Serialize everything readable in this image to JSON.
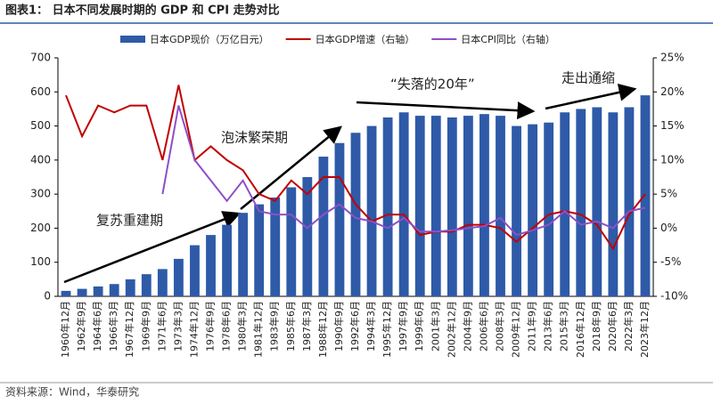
{
  "header": {
    "title": "图表1：  日本不同发展时期的 GDP 和 CPI 走势对比"
  },
  "chart_data": {
    "type": "bar-line",
    "categories": [
      "1960年12月",
      "1962年9月",
      "1964年6月",
      "1966年3月",
      "1967年12月",
      "1969年9月",
      "1971年6月",
      "1973年3月",
      "1974年12月",
      "1976年9月",
      "1978年6月",
      "1980年3月",
      "1981年12月",
      "1983年9月",
      "1985年6月",
      "1987年3月",
      "1988年12月",
      "1990年9月",
      "1992年6月",
      "1994年3月",
      "1995年12月",
      "1997年9月",
      "1999年6月",
      "2001年3月",
      "2002年12月",
      "2004年9月",
      "2006年6月",
      "2008年3月",
      "2009年12月",
      "2011年9月",
      "2013年6月",
      "2015年3月",
      "2016年12月",
      "2018年9月",
      "2020年6月",
      "2022年3月",
      "2023年12月"
    ],
    "series": [
      {
        "name": "日本GDP现价（万亿日元）",
        "type": "bar",
        "color": "#2e5aa8",
        "values": [
          16,
          22,
          29,
          36,
          50,
          65,
          80,
          110,
          150,
          180,
          210,
          245,
          270,
          290,
          320,
          350,
          410,
          450,
          480,
          500,
          525,
          540,
          530,
          530,
          525,
          530,
          535,
          530,
          500,
          505,
          510,
          540,
          550,
          555,
          540,
          555,
          590
        ]
      },
      {
        "name": "日本GDP增速（右轴）",
        "type": "line",
        "axis": "y2",
        "color": "#c00000",
        "values": [
          19.5,
          13.5,
          18,
          17,
          18,
          18,
          10,
          21,
          10,
          12,
          10,
          8.5,
          5,
          4,
          7,
          5,
          7.5,
          7.5,
          3.5,
          1,
          2,
          2,
          -1,
          -0.5,
          -0.5,
          0.5,
          0.5,
          0,
          -2,
          0,
          2,
          2.5,
          2,
          0.5,
          -3,
          2,
          5
        ]
      },
      {
        "name": "日本CPI同比（右轴）",
        "type": "line",
        "axis": "y2",
        "color": "#8e4fc7",
        "values": [
          null,
          null,
          null,
          null,
          null,
          null,
          5,
          18,
          10,
          7,
          4,
          7,
          2.5,
          2,
          2,
          0,
          2,
          3.5,
          1.5,
          1,
          0,
          1.5,
          -0.5,
          -0.5,
          -0.3,
          0,
          0.3,
          1.5,
          -1,
          -0.3,
          0.5,
          2.5,
          0.5,
          1,
          0,
          2.5,
          3
        ]
      }
    ],
    "ylim": [
      0,
      700
    ],
    "yticks": [
      0,
      100,
      200,
      300,
      400,
      500,
      600,
      700
    ],
    "y2lim": [
      -10,
      25
    ],
    "y2ticks": [
      {
        "value": -10,
        "label": "-10%"
      },
      {
        "value": -5,
        "label": "-5%"
      },
      {
        "value": 0,
        "label": "0%"
      },
      {
        "value": 5,
        "label": "5%"
      },
      {
        "value": 10,
        "label": "10%"
      },
      {
        "value": 15,
        "label": "15%"
      },
      {
        "value": 20,
        "label": "20%"
      },
      {
        "value": 25,
        "label": "25%"
      }
    ],
    "annotations": [
      "复苏重建期",
      "泡沫繁荣期",
      "“失落的20年”",
      "走出通缩"
    ]
  },
  "footer": {
    "source": "资料来源：Wind，华泰研究"
  }
}
